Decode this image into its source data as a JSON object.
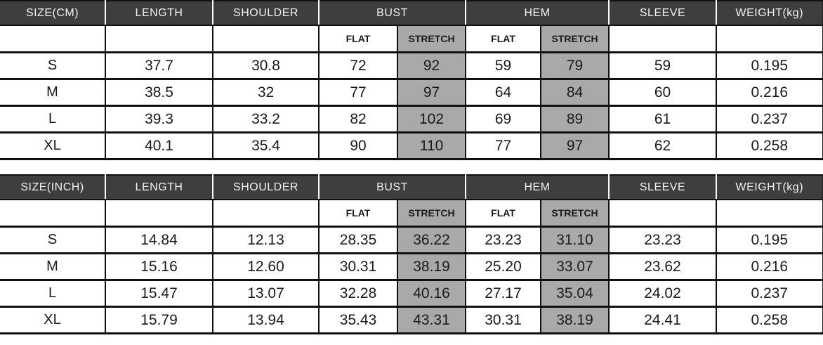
{
  "colors": {
    "header_bg": "#3e3e3e",
    "header_text": "#f2f2f2",
    "stretch_bg": "#a9a9a9",
    "grid_line": "#101010",
    "cell_bg": "#ffffff",
    "text": "#1a1a1a"
  },
  "tables": [
    {
      "unit": "centimeters",
      "header": [
        "SIZE(CM)",
        "LENGTH",
        "SHOULDER",
        "BUST",
        "HEM",
        "SLEEVE",
        "WEIGHT(kg)"
      ],
      "subheader": [
        "FLAT",
        "STRETCH",
        "FLAT",
        "STRETCH"
      ],
      "rows": [
        {
          "cells": [
            "S",
            "37.7",
            "30.8",
            "72",
            "92",
            "59",
            "79",
            "59",
            "0.195"
          ]
        },
        {
          "cells": [
            "M",
            "38.5",
            "32",
            "77",
            "97",
            "64",
            "84",
            "60",
            "0.216"
          ]
        },
        {
          "cells": [
            "L",
            "39.3",
            "33.2",
            "82",
            "102",
            "69",
            "89",
            "61",
            "0.237"
          ]
        },
        {
          "cells": [
            "XL",
            "40.1",
            "35.4",
            "90",
            "110",
            "77",
            "97",
            "62",
            "0.258"
          ]
        }
      ]
    },
    {
      "unit": "inches",
      "header": [
        "SIZE(INCH)",
        "LENGTH",
        "SHOULDER",
        "BUST",
        "HEM",
        "SLEEVE",
        "WEIGHT(kg)"
      ],
      "subheader": [
        "FLAT",
        "STRETCH",
        "FLAT",
        "STRETCH"
      ],
      "rows": [
        {
          "cells": [
            "S",
            "14.84",
            "12.13",
            "28.35",
            "36.22",
            "23.23",
            "31.10",
            "23.23",
            "0.195"
          ]
        },
        {
          "cells": [
            "M",
            "15.16",
            "12.60",
            "30.31",
            "38.19",
            "25.20",
            "33.07",
            "23.62",
            "0.216"
          ]
        },
        {
          "cells": [
            "L",
            "15.47",
            "13.07",
            "32.28",
            "40.16",
            "27.17",
            "35.04",
            "24.02",
            "0.237"
          ]
        },
        {
          "cells": [
            "XL",
            "15.79",
            "13.94",
            "35.43",
            "43.31",
            "30.31",
            "38.19",
            "24.41",
            "0.258"
          ]
        }
      ]
    }
  ],
  "chart_data": [
    {
      "type": "table",
      "title": "SIZE(CM)",
      "columns": [
        "SIZE",
        "LENGTH",
        "SHOULDER",
        "BUST FLAT",
        "BUST STRETCH",
        "HEM FLAT",
        "HEM STRETCH",
        "SLEEVE",
        "WEIGHT(kg)"
      ],
      "rows": [
        [
          "S",
          37.7,
          30.8,
          72,
          92,
          59,
          79,
          59,
          0.195
        ],
        [
          "M",
          38.5,
          32,
          77,
          97,
          64,
          84,
          60,
          0.216
        ],
        [
          "L",
          39.3,
          33.2,
          82,
          102,
          69,
          89,
          61,
          0.237
        ],
        [
          "XL",
          40.1,
          35.4,
          90,
          110,
          77,
          97,
          62,
          0.258
        ]
      ]
    },
    {
      "type": "table",
      "title": "SIZE(INCH)",
      "columns": [
        "SIZE",
        "LENGTH",
        "SHOULDER",
        "BUST FLAT",
        "BUST STRETCH",
        "HEM FLAT",
        "HEM STRETCH",
        "SLEEVE",
        "WEIGHT(kg)"
      ],
      "rows": [
        [
          "S",
          14.84,
          12.13,
          28.35,
          36.22,
          23.23,
          31.1,
          23.23,
          0.195
        ],
        [
          "M",
          15.16,
          12.6,
          30.31,
          38.19,
          25.2,
          33.07,
          23.62,
          0.216
        ],
        [
          "L",
          15.47,
          13.07,
          32.28,
          40.16,
          27.17,
          35.04,
          24.02,
          0.237
        ],
        [
          "XL",
          15.79,
          13.94,
          35.43,
          43.31,
          30.31,
          38.19,
          24.41,
          0.258
        ]
      ]
    }
  ]
}
